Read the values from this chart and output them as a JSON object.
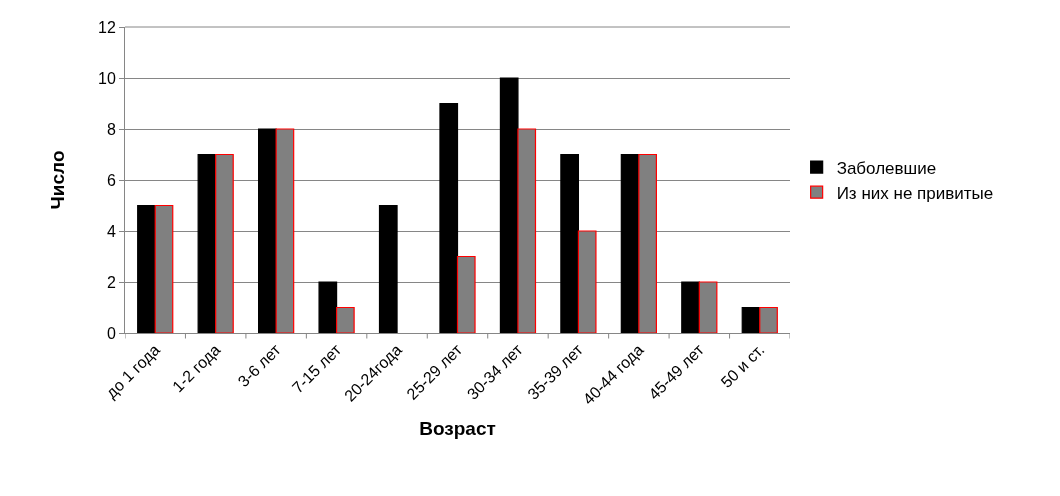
{
  "chart_data": {
    "type": "bar",
    "xlabel": "Возраст",
    "ylabel": "Число",
    "categories": [
      "до 1 года",
      "1-2 года",
      "3-6 лет",
      "7-15 лет",
      "20-24года",
      "25-29 лет",
      "30-34 лет",
      "35-39 лет",
      "40-44 года",
      "45-49 лет",
      "50 и ст."
    ],
    "series": [
      {
        "name": "Заболевшие",
        "color": "#000000",
        "values": [
          5,
          7,
          8,
          2,
          5,
          9,
          10,
          7,
          7,
          2,
          1
        ]
      },
      {
        "name": "Из них не привитые",
        "color": "#808080",
        "values": [
          5,
          7,
          8,
          1,
          null,
          3,
          8,
          4,
          7,
          2,
          1
        ]
      }
    ],
    "ylim": [
      0,
      12
    ],
    "yticks": [
      0,
      2,
      4,
      6,
      8,
      10,
      12
    ],
    "grid": "y",
    "legend": "right"
  }
}
